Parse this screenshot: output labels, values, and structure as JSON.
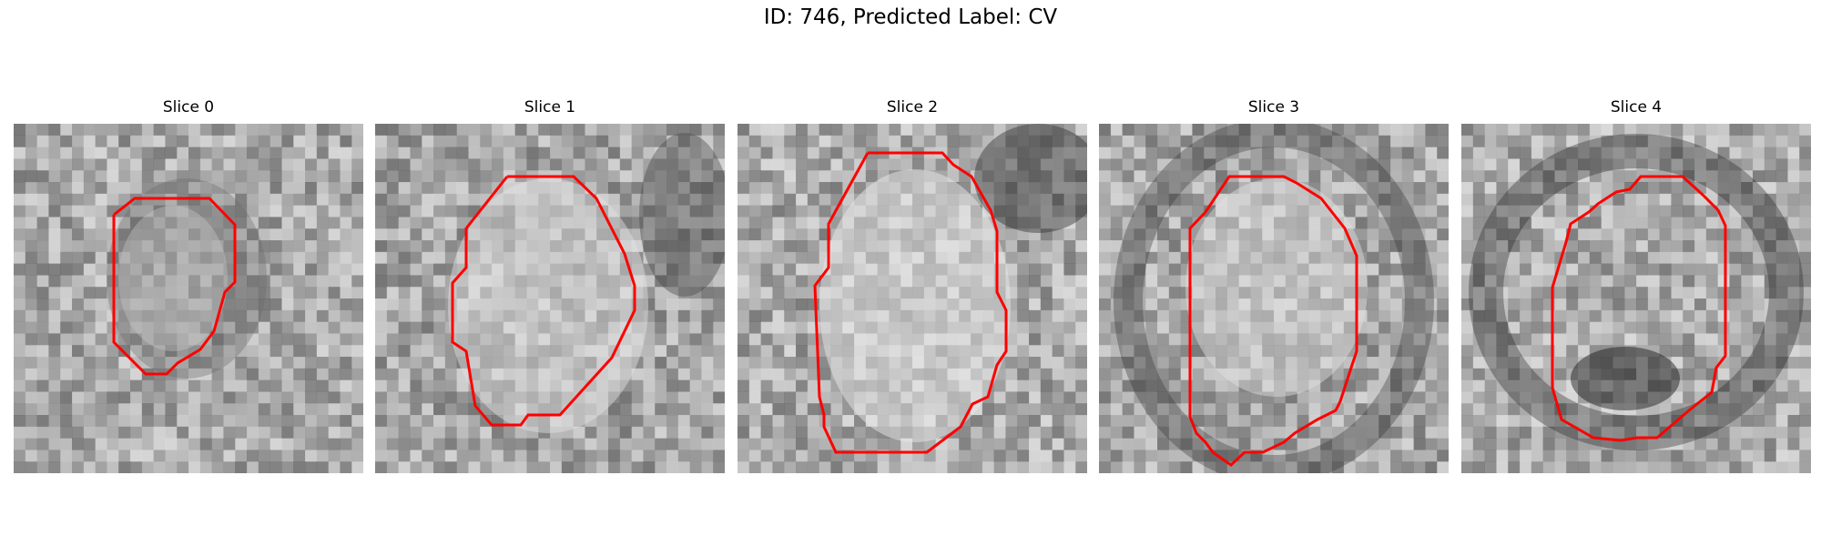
{
  "figure": {
    "title": "ID: 746, Predicted Label: CV"
  },
  "panels": [
    {
      "title": "Slice 0"
    },
    {
      "title": "Slice 1"
    },
    {
      "title": "Slice 2"
    },
    {
      "title": "Slice 3"
    },
    {
      "title": "Slice 4"
    }
  ],
  "colors": {
    "contour": "#ff0000"
  }
}
